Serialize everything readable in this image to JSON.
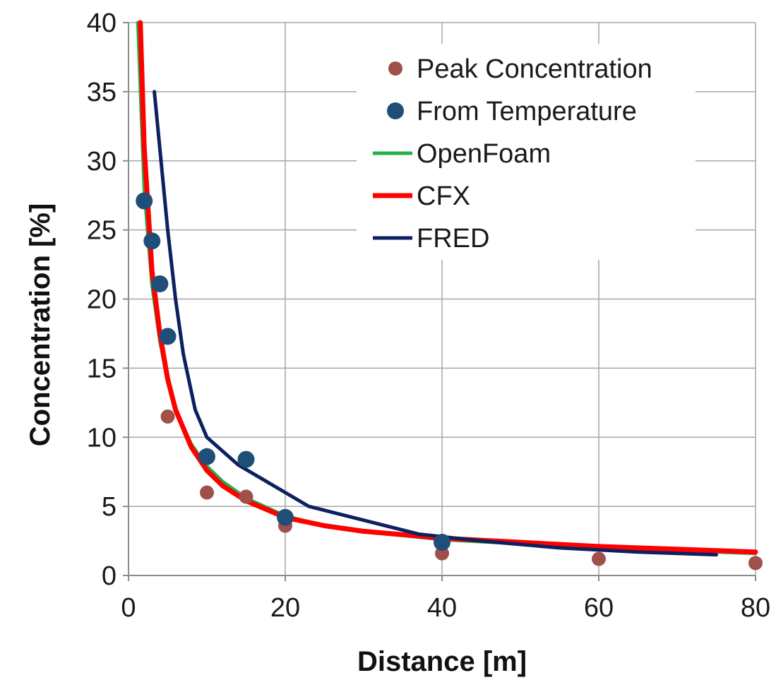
{
  "chart_data": {
    "type": "scatter",
    "title": "",
    "xlabel": "Distance [m]",
    "ylabel": "Concentration [%]",
    "xlim": [
      0,
      80
    ],
    "ylim": [
      0,
      40
    ],
    "x_ticks": [
      "0",
      "20",
      "40",
      "60",
      "80"
    ],
    "y_ticks": [
      "0",
      "5",
      "10",
      "15",
      "20",
      "25",
      "30",
      "35",
      "40"
    ],
    "grid": true,
    "legend_position": "top-right",
    "series": [
      {
        "name": "Peak Concentration",
        "kind": "markers",
        "color": "#a0504a",
        "x": [
          5,
          10,
          15,
          20,
          40,
          60,
          80
        ],
        "y": [
          11.5,
          6.0,
          5.7,
          3.6,
          1.6,
          1.2,
          0.9
        ]
      },
      {
        "name": "From Temperature",
        "kind": "markers",
        "color": "#1f4e79",
        "x": [
          2,
          3,
          4,
          5,
          10,
          15,
          20,
          40
        ],
        "y": [
          27.1,
          24.2,
          21.1,
          17.3,
          8.6,
          8.4,
          4.2,
          2.4
        ]
      },
      {
        "name": "OpenFoam",
        "kind": "line",
        "color": "#22b14c",
        "x": [
          1.2,
          2,
          3,
          4,
          5,
          6,
          8,
          10,
          12,
          15,
          20,
          25,
          30,
          40,
          50,
          60,
          70,
          80
        ],
        "y": [
          40,
          28,
          21,
          17,
          14,
          12,
          9.5,
          7.9,
          6.8,
          5.6,
          4.3,
          3.6,
          3.2,
          2.6,
          2.3,
          2.0,
          1.8,
          1.6
        ]
      },
      {
        "name": "CFX",
        "kind": "line",
        "color": "#ff0000",
        "x": [
          1.5,
          2,
          3,
          4,
          5,
          6,
          8,
          10,
          12,
          15,
          20,
          25,
          30,
          40,
          50,
          60,
          70,
          80
        ],
        "y": [
          40,
          31,
          22,
          17.5,
          14.2,
          12,
          9.3,
          7.6,
          6.5,
          5.4,
          4.2,
          3.6,
          3.2,
          2.7,
          2.4,
          2.1,
          1.9,
          1.7
        ]
      },
      {
        "name": "FRED",
        "kind": "line",
        "color": "#0d2160",
        "x": [
          3.3,
          5,
          6,
          7,
          8.5,
          10,
          14,
          20,
          23,
          30,
          37,
          45,
          55,
          65,
          75
        ],
        "y": [
          35,
          25,
          20,
          16,
          12,
          10,
          8,
          6,
          5,
          4,
          3,
          2.5,
          2,
          1.7,
          1.5
        ]
      }
    ]
  }
}
